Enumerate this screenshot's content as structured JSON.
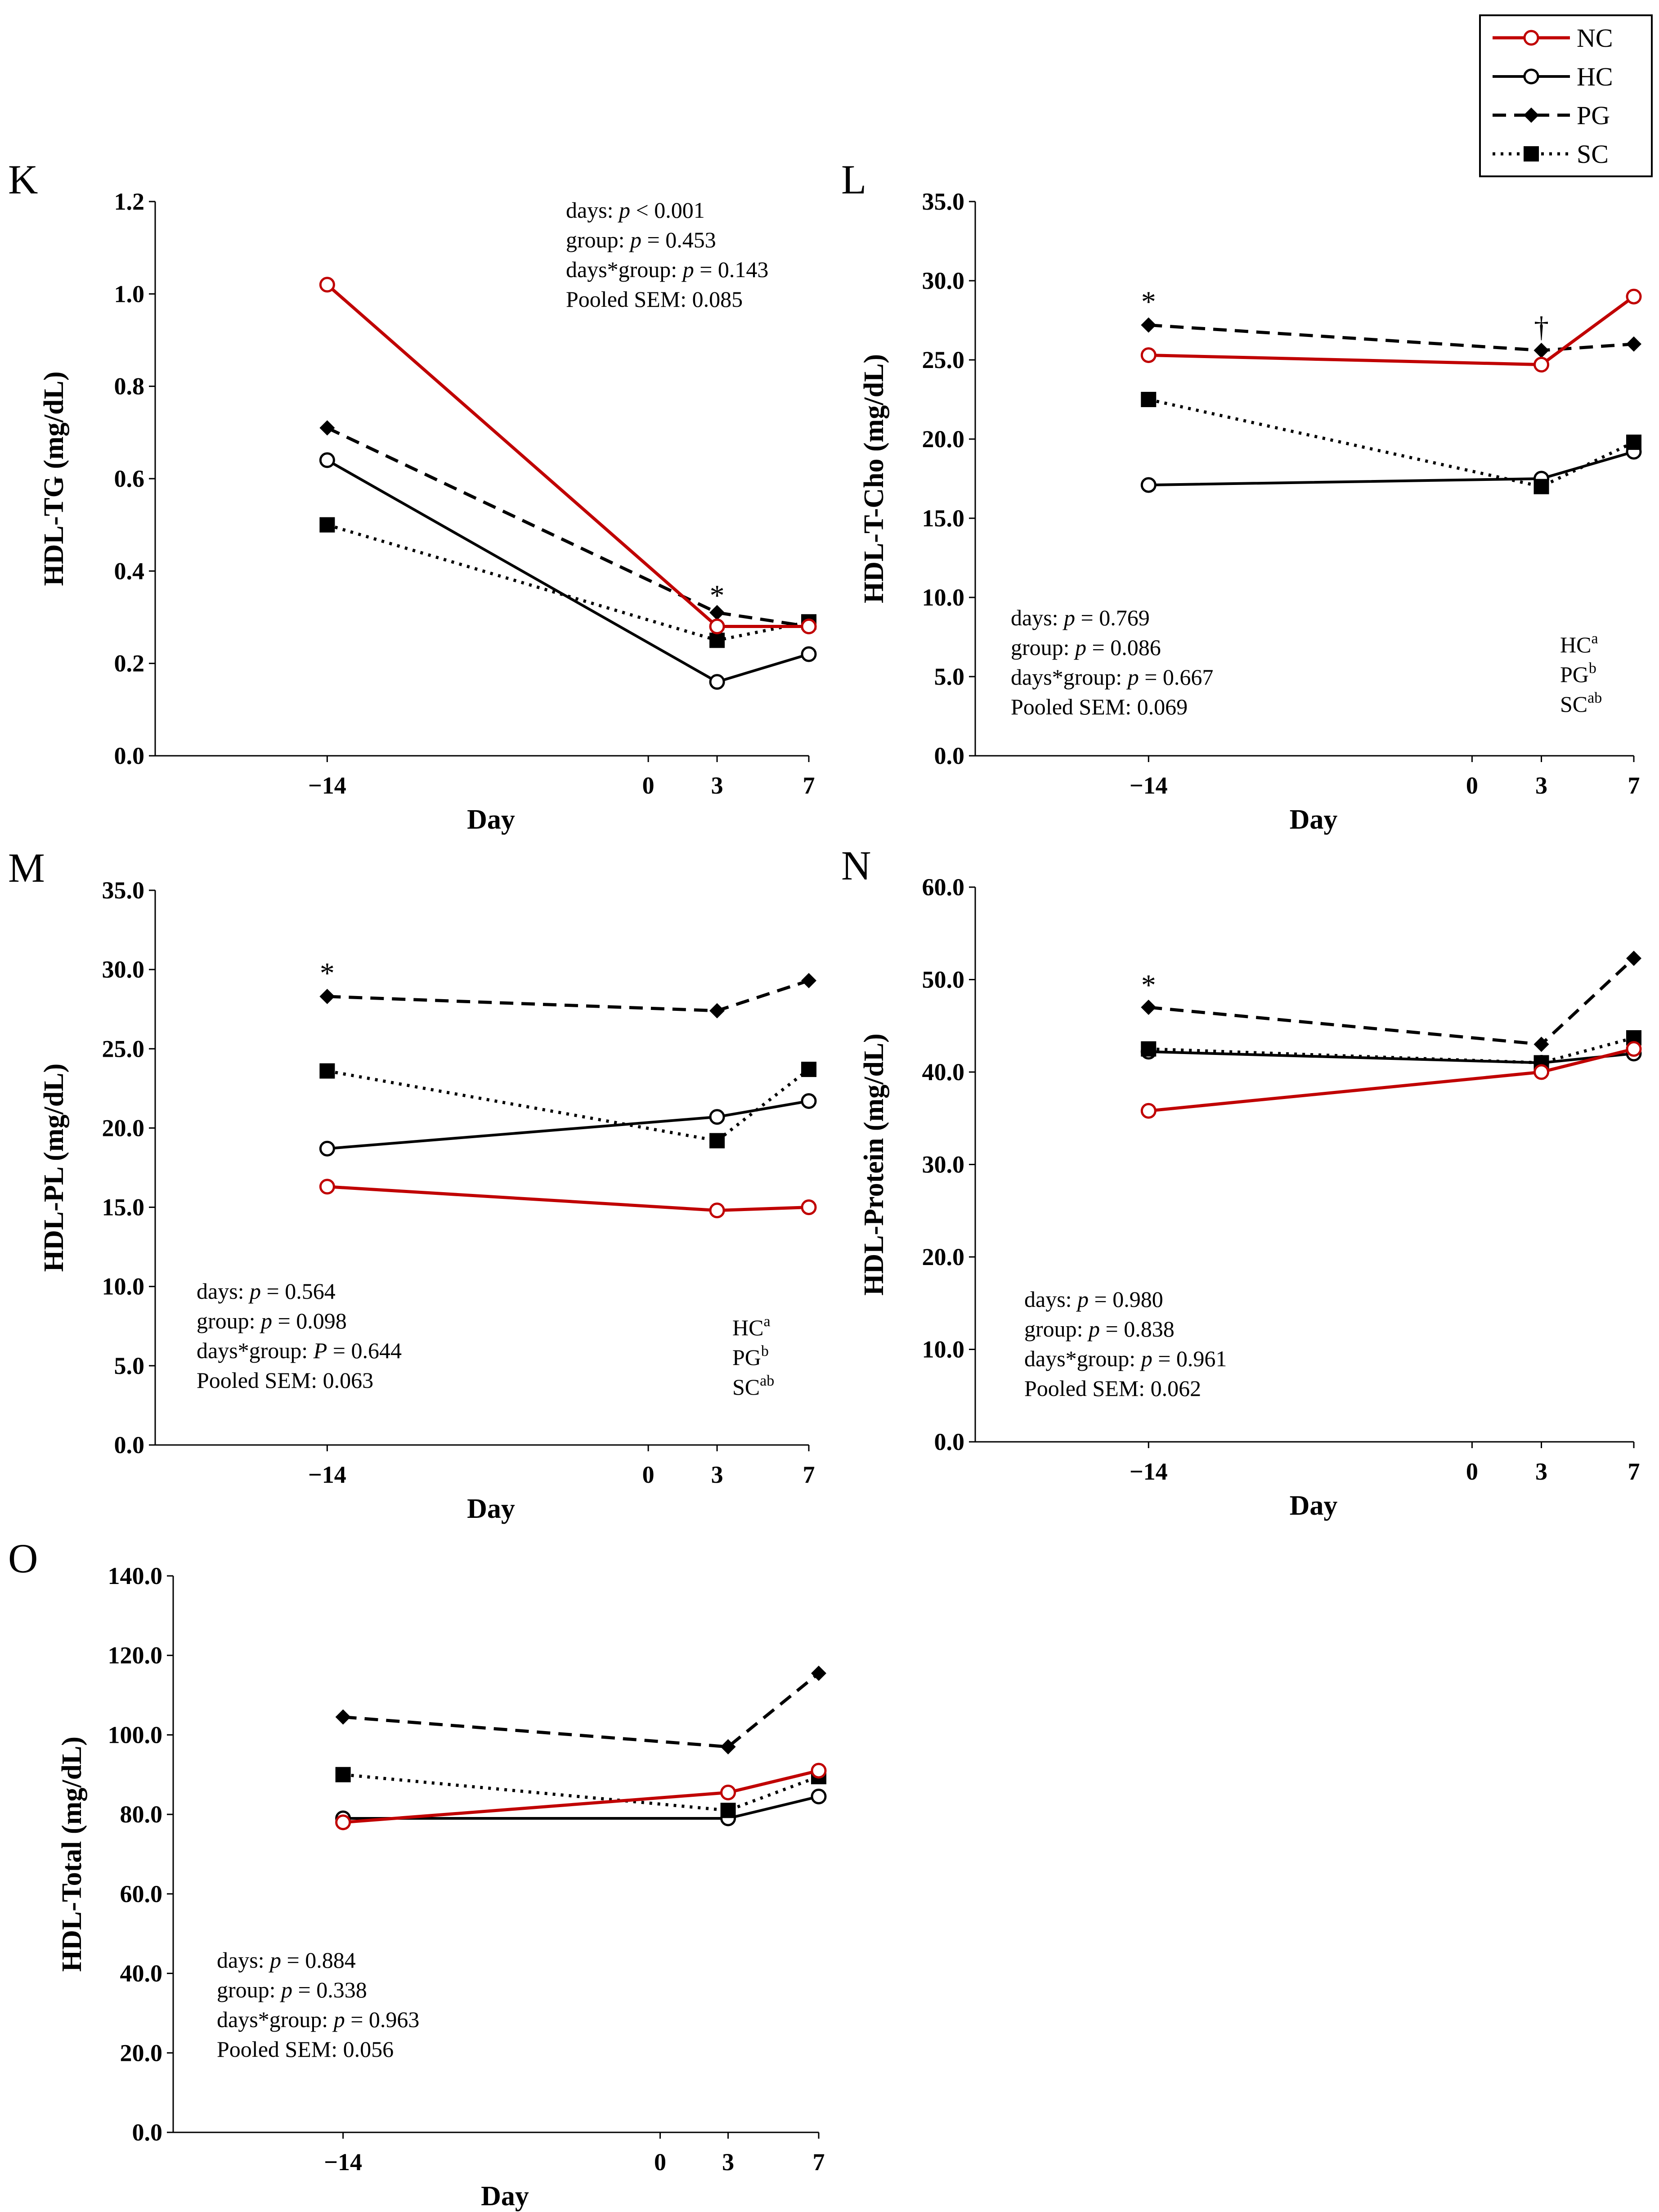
{
  "legend": {
    "entries": [
      {
        "name": "NC",
        "color": "#c00000",
        "dash": "",
        "marker": "circle-open"
      },
      {
        "name": "HC",
        "color": "#000000",
        "dash": "",
        "marker": "circle-open"
      },
      {
        "name": "PG",
        "color": "#000000",
        "dash": "30,18",
        "marker": "diamond"
      },
      {
        "name": "SC",
        "color": "#000000",
        "dash": "6,12",
        "marker": "square"
      }
    ]
  },
  "chart_data": [
    {
      "id": "K",
      "type": "line",
      "panel_label": "K",
      "title": "",
      "xlabel": "Day",
      "ylabel": "HDL-TG (mg/dL)",
      "x": [
        -14,
        3,
        7
      ],
      "xticks": [
        -14,
        0,
        3,
        7
      ],
      "xlim": [
        -21.5,
        7
      ],
      "ylim": [
        0,
        1.2
      ],
      "yticks": [
        "0.0",
        "0.2",
        "0.4",
        "0.6",
        "0.8",
        "1.0",
        "1.2"
      ],
      "series": [
        {
          "name": "NC",
          "values": [
            1.02,
            0.28,
            0.28
          ]
        },
        {
          "name": "HC",
          "values": [
            0.64,
            0.16,
            0.22
          ]
        },
        {
          "name": "PG",
          "values": [
            0.71,
            0.31,
            0.28
          ]
        },
        {
          "name": "SC",
          "values": [
            0.5,
            0.25,
            0.29
          ]
        }
      ],
      "annotations": [
        {
          "text": "*",
          "x": 3,
          "y": 0.355
        }
      ],
      "stats": [
        {
          "pre": "days: ",
          "p": "p",
          "post": " < 0.001"
        },
        {
          "pre": "group: ",
          "p": "p",
          "post": " = 0.453"
        },
        {
          "pre": "days*group: ",
          "p": "p",
          "post": " = 0.143"
        },
        {
          "pre": "Pooled SEM: 0.085",
          "p": "",
          "post": ""
        }
      ],
      "letters": []
    },
    {
      "id": "L",
      "type": "line",
      "panel_label": "L",
      "title": "",
      "xlabel": "Day",
      "ylabel": "HDL-T-Cho (mg/dL)",
      "x": [
        -14,
        3,
        7
      ],
      "xticks": [
        -14,
        0,
        3,
        7
      ],
      "xlim": [
        -21.5,
        7
      ],
      "ylim": [
        0,
        35
      ],
      "yticks": [
        "0.0",
        "5.0",
        "10.0",
        "15.0",
        "20.0",
        "25.0",
        "30.0",
        "35.0"
      ],
      "series": [
        {
          "name": "NC",
          "values": [
            25.3,
            24.7,
            29.0
          ]
        },
        {
          "name": "HC",
          "values": [
            17.1,
            17.5,
            19.2
          ]
        },
        {
          "name": "PG",
          "values": [
            27.2,
            25.6,
            26.0
          ]
        },
        {
          "name": "SC",
          "values": [
            22.5,
            17.0,
            19.8
          ]
        }
      ],
      "annotations": [
        {
          "text": "*",
          "x": -14,
          "y": 28.9
        },
        {
          "text": "†",
          "x": 3,
          "y": 27.3
        }
      ],
      "stats": [
        {
          "pre": "days: ",
          "p": "p",
          "post": " = 0.769"
        },
        {
          "pre": "group: ",
          "p": "p",
          "post": " = 0.086"
        },
        {
          "pre": "days*group: ",
          "p": "p",
          "post": " = 0.667"
        },
        {
          "pre": "Pooled SEM: 0.069",
          "p": "",
          "post": ""
        }
      ],
      "letters": [
        {
          "g": "HC",
          "s": "a"
        },
        {
          "g": "PG",
          "s": "b"
        },
        {
          "g": "SC",
          "s": "ab"
        }
      ]
    },
    {
      "id": "M",
      "type": "line",
      "panel_label": "M",
      "title": "",
      "xlabel": "Day",
      "ylabel": "HDL-PL (mg/dL)",
      "x": [
        -14,
        3,
        7
      ],
      "xticks": [
        -14,
        0,
        3,
        7
      ],
      "xlim": [
        -21.5,
        7
      ],
      "ylim": [
        0,
        35
      ],
      "yticks": [
        "0.0",
        "5.0",
        "10.0",
        "15.0",
        "20.0",
        "25.0",
        "30.0",
        "35.0"
      ],
      "series": [
        {
          "name": "NC",
          "values": [
            16.3,
            14.8,
            15.0
          ]
        },
        {
          "name": "HC",
          "values": [
            18.7,
            20.7,
            21.7
          ]
        },
        {
          "name": "PG",
          "values": [
            28.3,
            27.4,
            29.3
          ]
        },
        {
          "name": "SC",
          "values": [
            23.6,
            19.2,
            23.7
          ]
        }
      ],
      "annotations": [
        {
          "text": "*",
          "x": -14,
          "y": 30.0
        }
      ],
      "stats": [
        {
          "pre": "days: ",
          "p": "p",
          "post": " = 0.564"
        },
        {
          "pre": "group: ",
          "p": "p",
          "post": " = 0.098"
        },
        {
          "pre": "days*group: ",
          "p": "P",
          "post": " = 0.644"
        },
        {
          "pre": "Pooled SEM: 0.063",
          "p": "",
          "post": ""
        }
      ],
      "letters": [
        {
          "g": "HC",
          "s": "a"
        },
        {
          "g": "PG",
          "s": "b"
        },
        {
          "g": "SC",
          "s": "ab"
        }
      ]
    },
    {
      "id": "N",
      "type": "line",
      "panel_label": "N",
      "title": "",
      "xlabel": "Day",
      "ylabel": "HDL-Protein (mg/dL)",
      "x": [
        -14,
        3,
        7
      ],
      "xticks": [
        -14,
        0,
        3,
        7
      ],
      "xlim": [
        -21.5,
        7
      ],
      "ylim": [
        0,
        60
      ],
      "yticks": [
        "0.0",
        "10.0",
        "20.0",
        "30.0",
        "40.0",
        "50.0",
        "60.0"
      ],
      "series": [
        {
          "name": "NC",
          "values": [
            35.8,
            40.0,
            42.5
          ]
        },
        {
          "name": "HC",
          "values": [
            42.2,
            41.0,
            42.0
          ]
        },
        {
          "name": "PG",
          "values": [
            47.0,
            43.0,
            52.3
          ]
        },
        {
          "name": "SC",
          "values": [
            42.5,
            41.0,
            43.7
          ]
        }
      ],
      "annotations": [
        {
          "text": "*",
          "x": -14,
          "y": 49.8
        }
      ],
      "stats": [
        {
          "pre": "days: ",
          "p": "p",
          "post": " = 0.980"
        },
        {
          "pre": "group: ",
          "p": "p",
          "post": " = 0.838"
        },
        {
          "pre": "days*group: ",
          "p": "p",
          "post": " = 0.961"
        },
        {
          "pre": "Pooled SEM: 0.062",
          "p": "",
          "post": ""
        }
      ],
      "letters": []
    },
    {
      "id": "O",
      "type": "line",
      "panel_label": "O",
      "title": "",
      "xlabel": "Day",
      "ylabel": "HDL-Total (mg/dL)",
      "x": [
        -14,
        3,
        7
      ],
      "xticks": [
        -14,
        0,
        3,
        7
      ],
      "xlim": [
        -21.5,
        7
      ],
      "ylim": [
        0,
        140
      ],
      "yticks": [
        "0.0",
        "20.0",
        "40.0",
        "60.0",
        "80.0",
        "100.0",
        "120.0",
        "140.0"
      ],
      "series": [
        {
          "name": "NC",
          "values": [
            78.0,
            85.5,
            91.0
          ]
        },
        {
          "name": "HC",
          "values": [
            79.0,
            79.0,
            84.5
          ]
        },
        {
          "name": "PG",
          "values": [
            104.5,
            97.0,
            115.5
          ]
        },
        {
          "name": "SC",
          "values": [
            90.0,
            81.0,
            89.5
          ]
        }
      ],
      "annotations": [],
      "stats": [
        {
          "pre": "days: ",
          "p": "p",
          "post": " = 0.884"
        },
        {
          "pre": "group: ",
          "p": "p",
          "post": " = 0.338"
        },
        {
          "pre": "days*group: ",
          "p": "p",
          "post": " = 0.963"
        },
        {
          "pre": "Pooled SEM: 0.056",
          "p": "",
          "post": ""
        }
      ],
      "letters": []
    }
  ]
}
